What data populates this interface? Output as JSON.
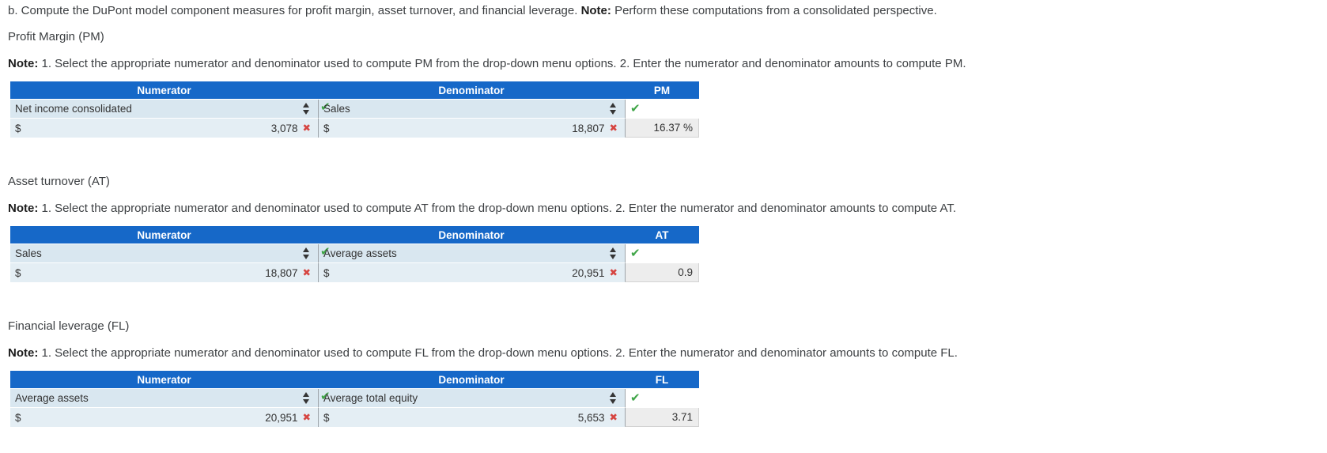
{
  "page": {
    "intro_text": "b. Compute the DuPont model component measures for profit margin, asset turnover, and financial leverage.",
    "intro_note_label": "Note:",
    "intro_note_text": "Perform these computations from a consolidated perspective."
  },
  "icons": {
    "check": "✔",
    "cross": "✖",
    "sort": "sort-up-down-arrows"
  },
  "colors": {
    "header_blue": "#1668c8",
    "row_blue": "#d9e7f0",
    "row_blue_light": "#e4eef4",
    "result_gray": "#ededed",
    "check_green": "#3fa547",
    "cross_red": "#d64541"
  },
  "sections": [
    {
      "title": "Profit Margin (PM)",
      "note_label": "Note:",
      "note_text": "1. Select the appropriate numerator and denominator used to compute PM from the drop-down menu options. 2. Enter the numerator and denominator amounts to compute PM.",
      "table": {
        "headers": {
          "numerator": "Numerator",
          "denominator": "Denominator",
          "result": "PM"
        },
        "numerator_selection": "Net income consolidated",
        "denominator_selection": "Sales",
        "currency": "$",
        "numerator_amount": "3,078",
        "denominator_amount": "18,807",
        "result": "16.37 %"
      }
    },
    {
      "title": "Asset turnover (AT)",
      "note_label": "Note:",
      "note_text": "1. Select the appropriate numerator and denominator used to compute AT from the drop-down menu options. 2. Enter the numerator and denominator amounts to compute AT.",
      "table": {
        "headers": {
          "numerator": "Numerator",
          "denominator": "Denominator",
          "result": "AT"
        },
        "numerator_selection": "Sales",
        "denominator_selection": "Average assets",
        "currency": "$",
        "numerator_amount": "18,807",
        "denominator_amount": "20,951",
        "result": "0.9"
      }
    },
    {
      "title": "Financial leverage (FL)",
      "note_label": "Note:",
      "note_text": "1. Select the appropriate numerator and denominator used to compute FL from the drop-down menu options. 2. Enter the numerator and denominator amounts to compute FL.",
      "table": {
        "headers": {
          "numerator": "Numerator",
          "denominator": "Denominator",
          "result": "FL"
        },
        "numerator_selection": "Average assets",
        "denominator_selection": "Average total equity",
        "currency": "$",
        "numerator_amount": "20,951",
        "denominator_amount": "5,653",
        "result": "3.71"
      }
    }
  ]
}
